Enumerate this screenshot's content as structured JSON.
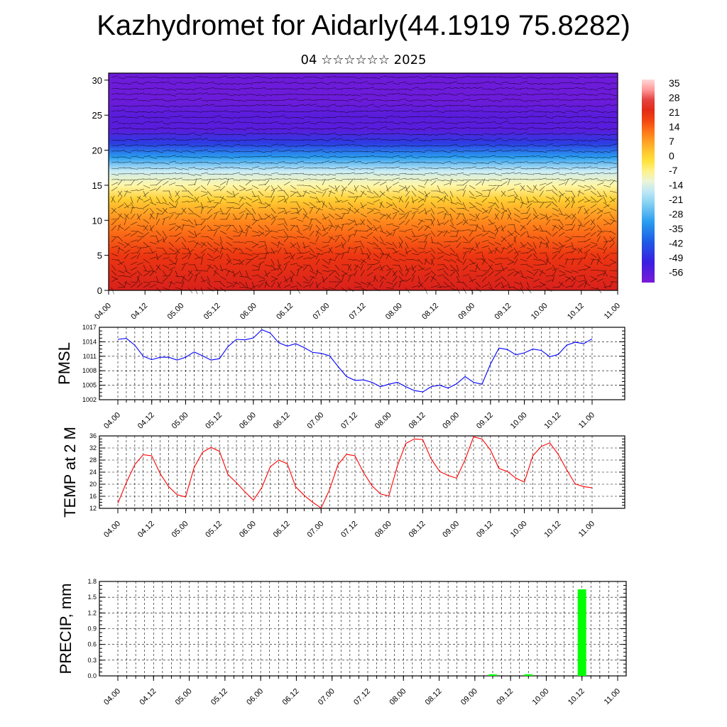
{
  "title": "Kazhydromet for Aidarly(44.1919 75.8282)",
  "subtitle": "04 ☆☆☆☆☆☆ 2025",
  "colors": {
    "pmsl_line": "#0000ff",
    "temp_line": "#ff0000",
    "precip_bar": "#00ff00",
    "frame": "#000000",
    "grid": "#000000"
  },
  "time_ticks": [
    "04.00",
    "04.12",
    "05.00",
    "05.12",
    "06.00",
    "06.12",
    "07.00",
    "07.12",
    "08.00",
    "08.12",
    "09.00",
    "09.12",
    "10.00",
    "10.12",
    "11.00"
  ],
  "chart_data": [
    {
      "type": "heatmap",
      "title": "",
      "xlabel": "",
      "ylabel": "",
      "y_ticks": [
        0,
        5,
        10,
        15,
        20,
        25,
        30
      ],
      "ylim": [
        0,
        31
      ],
      "colorbar": {
        "labels": [
          "35",
          "28",
          "21",
          "14",
          "7",
          "0",
          "-7",
          "-14",
          "-21",
          "-28",
          "-35",
          "-42",
          "-49",
          "-56"
        ],
        "range": [
          -60,
          40
        ]
      },
      "overlay": "wind barbs",
      "rows": [
        {
          "level": 0,
          "value": 28
        },
        {
          "level": 5,
          "value": 22
        },
        {
          "level": 8,
          "value": 16
        },
        {
          "level": 10,
          "value": 12
        },
        {
          "level": 13,
          "value": 3
        },
        {
          "level": 15,
          "value": -7
        },
        {
          "level": 17,
          "value": -14
        },
        {
          "level": 19,
          "value": -30
        },
        {
          "level": 21,
          "value": -45
        },
        {
          "level": 23,
          "value": -55
        },
        {
          "level": 25,
          "value": -55
        },
        {
          "level": 27,
          "value": -58
        },
        {
          "level": 31,
          "value": -58
        }
      ]
    },
    {
      "type": "line",
      "ylabel": "PMSL",
      "y_ticks": [
        1002,
        1005,
        1008,
        1011,
        1014,
        1017
      ],
      "ylim": [
        1002,
        1017
      ],
      "x_step_hours": 3,
      "values": [
        1014.5,
        1014.7,
        1013.3,
        1011.0,
        1010.3,
        1010.8,
        1010.8,
        1010.2,
        1010.8,
        1011.9,
        1011.1,
        1010.2,
        1010.5,
        1013.0,
        1014.5,
        1014.4,
        1014.8,
        1016.5,
        1015.8,
        1013.8,
        1013.1,
        1013.6,
        1012.8,
        1011.8,
        1011.6,
        1011.1,
        1008.9,
        1006.8,
        1006.0,
        1006.1,
        1005.6,
        1004.7,
        1005.2,
        1005.6,
        1004.7,
        1003.9,
        1003.6,
        1004.7,
        1005.0,
        1004.4,
        1005.3,
        1006.8,
        1005.6,
        1005.2,
        1009.4,
        1012.7,
        1012.4,
        1011.3,
        1011.7,
        1012.5,
        1012.2,
        1010.9,
        1011.4,
        1013.3,
        1013.9,
        1013.6,
        1014.6
      ]
    },
    {
      "type": "line",
      "ylabel": "TEMP at 2 M",
      "y_ticks": [
        12,
        16,
        20,
        24,
        28,
        32,
        36
      ],
      "ylim": [
        12,
        36
      ],
      "x_step_hours": 3,
      "values": [
        13.7,
        20.5,
        26.5,
        29.8,
        29.4,
        23.5,
        19.2,
        16.5,
        15.8,
        25.5,
        30.6,
        32.2,
        30.9,
        23.2,
        20.5,
        17.5,
        14.7,
        18.9,
        25.8,
        28.0,
        26.8,
        19.1,
        16.3,
        14.0,
        12.1,
        18.2,
        26.5,
        29.9,
        29.4,
        23.9,
        19.5,
        16.8,
        16.1,
        26.0,
        33.5,
        35.0,
        34.8,
        28.3,
        24.2,
        22.9,
        22.0,
        28.1,
        35.7,
        35.0,
        31.3,
        25.2,
        24.2,
        22.0,
        20.7,
        29.4,
        32.5,
        33.7,
        29.9,
        24.8,
        20.1,
        19.2,
        18.8
      ]
    },
    {
      "type": "bar",
      "ylabel": "PRECIP, mm",
      "y_ticks": [
        "0.0",
        "0.3",
        "0.6",
        "0.9",
        "1.2",
        "1.5",
        "1.8"
      ],
      "ylim": [
        0,
        1.8
      ],
      "bars": [
        {
          "x": "09.06",
          "value": 0.03
        },
        {
          "x": "09.18",
          "value": 0.03
        },
        {
          "x": "10.12",
          "value": 1.65
        }
      ]
    }
  ]
}
